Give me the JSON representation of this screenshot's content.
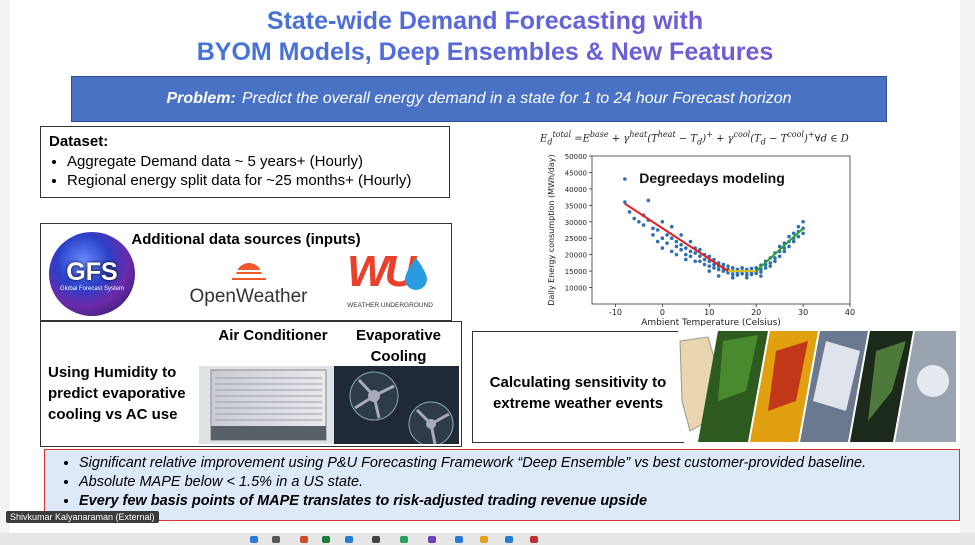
{
  "slide": {
    "title_line1": "State-wide Demand Forecasting with",
    "title_line2": "BYOM Models, Deep Ensembles & New Features",
    "problem_label": "Problem:",
    "problem_text": "Predict the overall energy demand in a state for 1 to 24 hour Forecast horizon",
    "dataset": {
      "heading": "Dataset:",
      "items": [
        "Aggregate Demand data ~ 5 years+ (Hourly)",
        "Regional energy split data for ~25 months+ (Hourly)"
      ]
    },
    "sources": {
      "heading": "Additional data sources (inputs)",
      "gfs_text": "GFS",
      "gfs_sub": "Global Forecast System",
      "openweather": "OpenWeather",
      "wu_mark": "WU",
      "wu_text": "WEATHER UNDERGROUND"
    },
    "humidity": {
      "label": "Using Humidity to predict evaporative cooling vs AC use",
      "ac_label": "Air Conditioner",
      "evap_label": "Evaporative Cooling"
    },
    "sensitivity_label": "Calculating sensitivity to extreme weather events",
    "bottom_points": [
      "Significant relative improvement using P&U Forecasting Framework “Deep Ensemble” vs best customer-provided baseline.",
      "Absolute MAPE below < 1.5% in a US state.",
      "Every few basis points of MAPE translates to risk-adjusted trading revenue upside"
    ]
  },
  "presenter_badge": "Shivkumar Kalyanaraman (External)",
  "colors": {
    "problem_bg": "#4a72c4",
    "bottom_bg": "#dde8f8",
    "bottom_border": "#dd3333",
    "fit_line_cold": "#e02020",
    "fit_line_flat": "#e0c020",
    "fit_line_warm": "#30a030",
    "points": "#2f6fb0"
  },
  "chart_data": {
    "type": "scatter",
    "formula": "E_d^total = E^base + γ^heat (T^heat − T_d)^+ + γ^cool (T_d − T^cool)^+ ∀d ∈ D",
    "title": "Degreedays modeling",
    "xlabel": "Ambient Temperature (Celsius)",
    "ylabel": "Daily Energy consumption (MWh/day)",
    "xlim": [
      -15,
      40
    ],
    "ylim": [
      5000,
      50000
    ],
    "xticks": [
      -10,
      0,
      10,
      20,
      30,
      40
    ],
    "yticks": [
      10000,
      15000,
      20000,
      25000,
      30000,
      35000,
      40000,
      45000,
      50000
    ],
    "grid": false,
    "fit": [
      {
        "x": [
          -8,
          14
        ],
        "y": [
          35500,
          15000
        ]
      },
      {
        "x": [
          14,
          20
        ],
        "y": [
          15000,
          15000
        ]
      },
      {
        "x": [
          20,
          30
        ],
        "y": [
          15000,
          28000
        ]
      }
    ],
    "points": [
      [
        -8,
        43000
      ],
      [
        -8,
        36000
      ],
      [
        -7,
        33000
      ],
      [
        -6,
        31000
      ],
      [
        -5,
        30000
      ],
      [
        -4,
        29000
      ],
      [
        -4,
        32000
      ],
      [
        -3,
        36500
      ],
      [
        -2,
        28000
      ],
      [
        -2,
        26000
      ],
      [
        -1,
        27500
      ],
      [
        -1,
        24000
      ],
      [
        0,
        30000
      ],
      [
        0,
        25000
      ],
      [
        0,
        22000
      ],
      [
        1,
        26000
      ],
      [
        1,
        23500
      ],
      [
        2,
        25000
      ],
      [
        2,
        21000
      ],
      [
        3,
        24000
      ],
      [
        3,
        22500
      ],
      [
        3,
        20000
      ],
      [
        4,
        23000
      ],
      [
        4,
        21500
      ],
      [
        5,
        22000
      ],
      [
        5,
        20000
      ],
      [
        5,
        18500
      ],
      [
        6,
        21000
      ],
      [
        6,
        19500
      ],
      [
        7,
        22000
      ],
      [
        7,
        20500
      ],
      [
        7,
        18000
      ],
      [
        8,
        19500
      ],
      [
        8,
        18000
      ],
      [
        8,
        21500
      ],
      [
        9,
        18500
      ],
      [
        9,
        17000
      ],
      [
        9,
        20000
      ],
      [
        10,
        18000
      ],
      [
        10,
        16500
      ],
      [
        10,
        19500
      ],
      [
        11,
        17000
      ],
      [
        11,
        16000
      ],
      [
        11,
        18500
      ],
      [
        12,
        16500
      ],
      [
        12,
        15500
      ],
      [
        12,
        17500
      ],
      [
        13,
        16000
      ],
      [
        13,
        15000
      ],
      [
        13,
        17000
      ],
      [
        14,
        15500
      ],
      [
        14,
        14500
      ],
      [
        14,
        16500
      ],
      [
        15,
        15000
      ],
      [
        15,
        14000
      ],
      [
        15,
        16000
      ],
      [
        16,
        14500
      ],
      [
        16,
        15500
      ],
      [
        16,
        13800
      ],
      [
        17,
        15000
      ],
      [
        17,
        14200
      ],
      [
        17,
        16000
      ],
      [
        18,
        14800
      ],
      [
        18,
        13900
      ],
      [
        18,
        15500
      ],
      [
        19,
        14500
      ],
      [
        19,
        15800
      ],
      [
        19,
        14000
      ],
      [
        20,
        15000
      ],
      [
        20,
        16000
      ],
      [
        20,
        14300
      ],
      [
        21,
        15500
      ],
      [
        21,
        16800
      ],
      [
        21,
        14700
      ],
      [
        22,
        17000
      ],
      [
        22,
        16000
      ],
      [
        22,
        18000
      ],
      [
        23,
        17500
      ],
      [
        23,
        19000
      ],
      [
        23,
        16500
      ],
      [
        24,
        19000
      ],
      [
        24,
        20500
      ],
      [
        24,
        18000
      ],
      [
        25,
        21000
      ],
      [
        25,
        19500
      ],
      [
        25,
        22500
      ],
      [
        26,
        22000
      ],
      [
        26,
        23500
      ],
      [
        26,
        21000
      ],
      [
        27,
        24000
      ],
      [
        27,
        22500
      ],
      [
        27,
        25500
      ],
      [
        28,
        25000
      ],
      [
        28,
        26500
      ],
      [
        28,
        24000
      ],
      [
        29,
        27000
      ],
      [
        29,
        25500
      ],
      [
        29,
        28500
      ],
      [
        30,
        28000
      ],
      [
        30,
        30000
      ],
      [
        30,
        26500
      ],
      [
        10,
        15000
      ],
      [
        12,
        13500
      ],
      [
        15,
        13000
      ],
      [
        18,
        13000
      ],
      [
        21,
        13500
      ],
      [
        6,
        24000
      ],
      [
        4,
        26000
      ],
      [
        2,
        28500
      ],
      [
        -3,
        30500
      ]
    ]
  }
}
